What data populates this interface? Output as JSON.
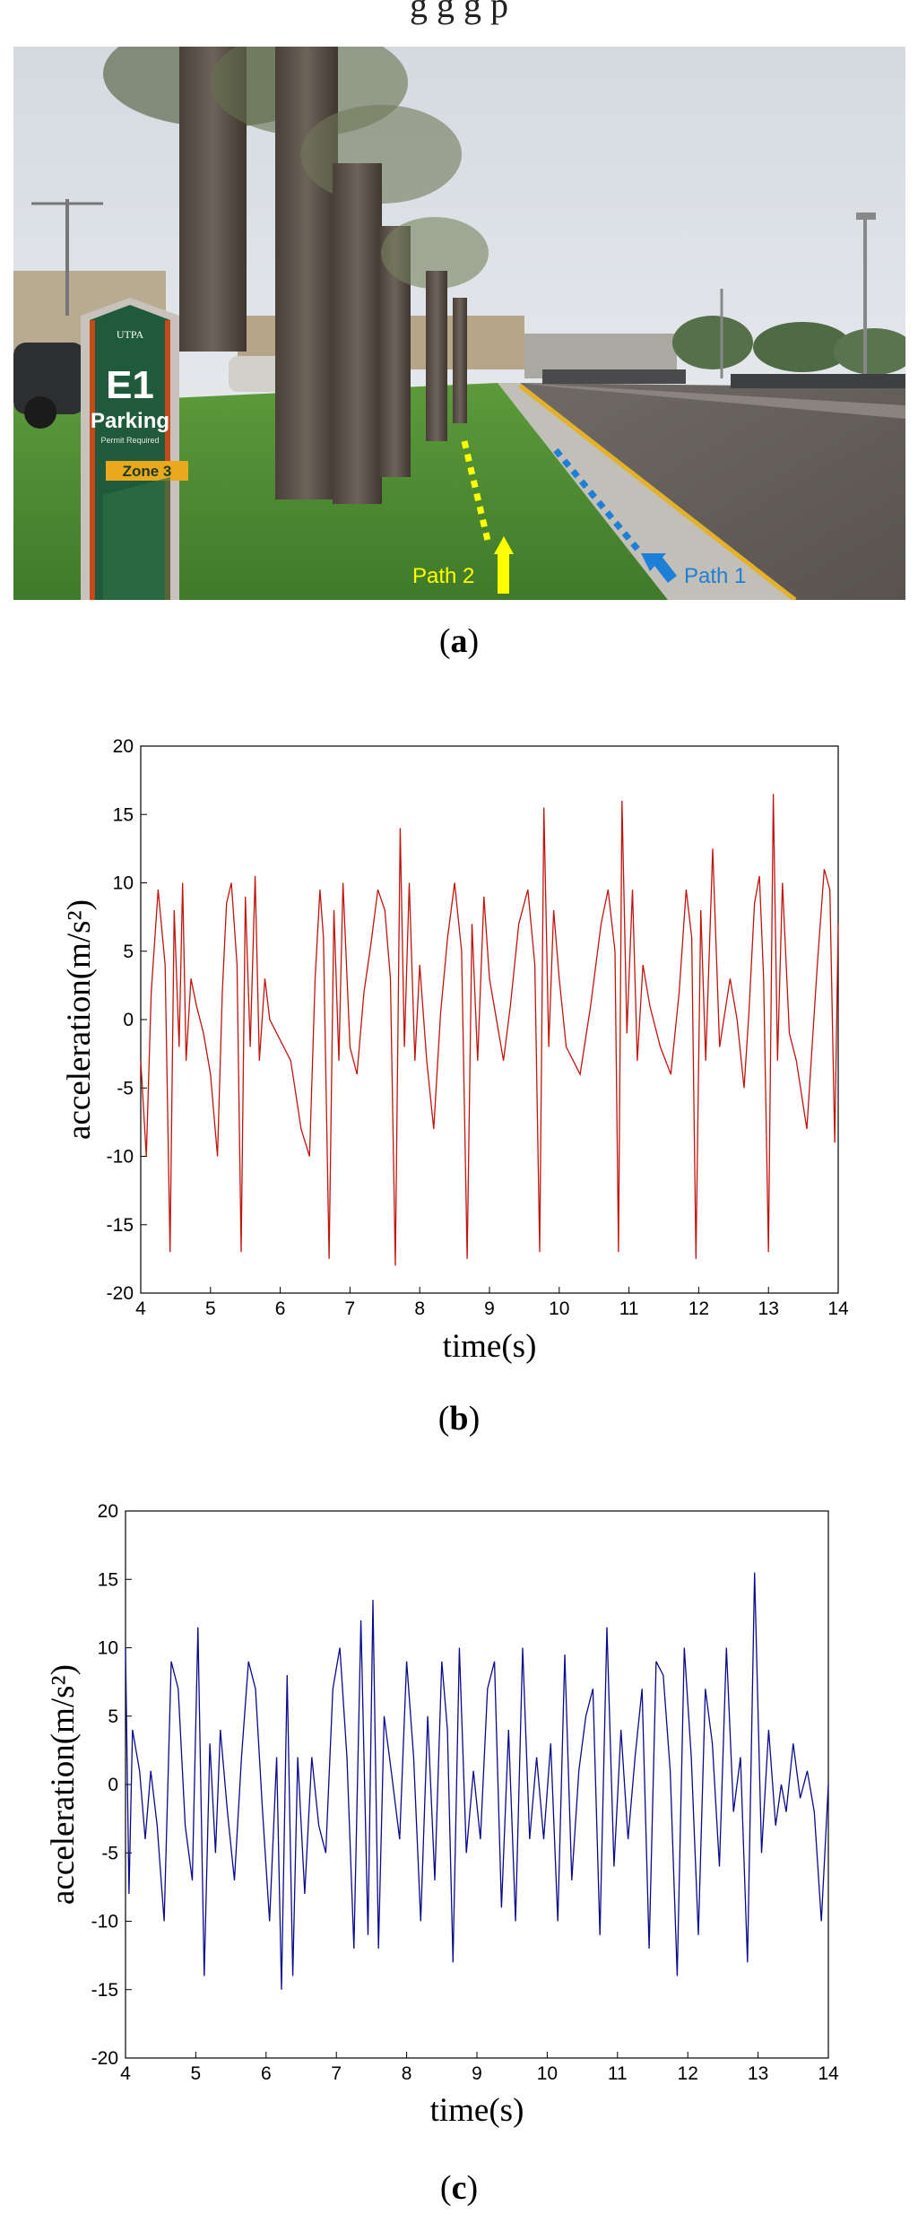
{
  "header_fragment": "g g g p",
  "photo": {
    "sign": {
      "logo": "UTPA",
      "lot": "E1",
      "title": "Parking",
      "subtitle": "Permit Required",
      "zone": "Zone 3"
    },
    "path2": {
      "label": "Path 2",
      "color": "#ffff00"
    },
    "path1": {
      "label": "Path 1",
      "color": "#1e7fd6"
    }
  },
  "captions": {
    "a": "a",
    "b": "b",
    "c": "c"
  },
  "chart_data": [
    {
      "type": "line",
      "panel": "b",
      "xlabel": "time(s)",
      "ylabel": "acceleration(m/s²)",
      "xlim": [
        4,
        14
      ],
      "ylim": [
        -20,
        20
      ],
      "xticks": [
        "4",
        "5",
        "6",
        "7",
        "8",
        "9",
        "10",
        "11",
        "12",
        "13",
        "14"
      ],
      "yticks": [
        "20",
        "15",
        "10",
        "5",
        "0",
        "-5",
        "-10",
        "-15",
        "-20"
      ],
      "grid": false,
      "color": "#c0140c",
      "series": [
        {
          "x": [
            4.0,
            4.08,
            4.15,
            4.25,
            4.35,
            4.42,
            4.48,
            4.55,
            4.6,
            4.65,
            4.72,
            4.8,
            4.9,
            5.0,
            5.1,
            5.17,
            5.23,
            5.3,
            5.38,
            5.44,
            5.5,
            5.57,
            5.64,
            5.7,
            5.78,
            5.85,
            5.95,
            6.05,
            6.15,
            6.3,
            6.42,
            6.5,
            6.57,
            6.62,
            6.7,
            6.77,
            6.84,
            6.9,
            7.0,
            7.1,
            7.2,
            7.3,
            7.4,
            7.5,
            7.58,
            7.65,
            7.72,
            7.78,
            7.85,
            7.93,
            8.0,
            8.1,
            8.2,
            8.3,
            8.4,
            8.5,
            8.6,
            8.68,
            8.75,
            8.83,
            8.92,
            9.0,
            9.1,
            9.2,
            9.3,
            9.42,
            9.55,
            9.65,
            9.72,
            9.78,
            9.85,
            9.92,
            10.0,
            10.1,
            10.2,
            10.3,
            10.45,
            10.6,
            10.7,
            10.8,
            10.85,
            10.9,
            10.97,
            11.05,
            11.12,
            11.2,
            11.3,
            11.45,
            11.6,
            11.72,
            11.82,
            11.9,
            11.96,
            12.03,
            12.1,
            12.2,
            12.3,
            12.45,
            12.55,
            12.65,
            12.72,
            12.8,
            12.87,
            12.93,
            13.0,
            13.07,
            13.13,
            13.2,
            13.3,
            13.4,
            13.55,
            13.7,
            13.8,
            13.88,
            13.95,
            14.0
          ],
          "y": [
            -3,
            -10,
            2,
            9.5,
            4,
            -17,
            8,
            -2,
            10,
            -3,
            3,
            1,
            -1,
            -4,
            -10,
            2,
            8.5,
            10,
            4,
            -17,
            9,
            -2,
            10.5,
            -3,
            3,
            0,
            -1,
            -2,
            -3,
            -8,
            -10,
            3,
            9.5,
            6,
            -17.5,
            8,
            -3,
            10,
            -2,
            -4,
            2,
            5.5,
            9.5,
            8,
            3,
            -18,
            14,
            -2,
            10,
            -3,
            4,
            -3,
            -8,
            0.5,
            6,
            10,
            5,
            -17.5,
            7,
            -3,
            9,
            3,
            0,
            -3,
            1,
            7,
            9.5,
            4,
            -17,
            15.5,
            -2,
            8,
            3,
            -2,
            -3,
            -4,
            1,
            7,
            9.5,
            5,
            -17,
            16,
            -1,
            9.5,
            -3,
            4,
            1,
            -2,
            -4,
            2,
            9.5,
            6,
            -17.5,
            8,
            -3,
            12.5,
            -2,
            3,
            0,
            -5,
            0.5,
            8.5,
            10.5,
            3,
            -17,
            16.5,
            -3,
            10,
            -1,
            -3,
            -8,
            4,
            11,
            9.5,
            -9,
            7
          ]
        }
      ]
    },
    {
      "type": "line",
      "panel": "c",
      "xlabel": "time(s)",
      "ylabel": "acceleration(m/s²)",
      "xlim": [
        4,
        14
      ],
      "ylim": [
        -20,
        20
      ],
      "xticks": [
        "4",
        "5",
        "6",
        "7",
        "8",
        "9",
        "10",
        "11",
        "12",
        "13",
        "14"
      ],
      "yticks": [
        "20",
        "15",
        "10",
        "5",
        "0",
        "-5",
        "-10",
        "-15",
        "-20"
      ],
      "grid": false,
      "color": "#0a0a8c",
      "series": [
        {
          "x": [
            4.0,
            4.05,
            4.1,
            4.2,
            4.28,
            4.36,
            4.45,
            4.55,
            4.65,
            4.75,
            4.85,
            4.95,
            5.03,
            5.12,
            5.2,
            5.28,
            5.35,
            5.45,
            5.55,
            5.65,
            5.75,
            5.85,
            5.95,
            6.05,
            6.15,
            6.22,
            6.3,
            6.38,
            6.45,
            6.55,
            6.65,
            6.75,
            6.85,
            6.95,
            7.05,
            7.15,
            7.25,
            7.35,
            7.45,
            7.52,
            7.6,
            7.68,
            7.78,
            7.9,
            8.0,
            8.1,
            8.2,
            8.3,
            8.4,
            8.5,
            8.58,
            8.66,
            8.75,
            8.85,
            8.95,
            9.05,
            9.15,
            9.25,
            9.35,
            9.45,
            9.55,
            9.65,
            9.75,
            9.85,
            9.95,
            10.05,
            10.15,
            10.25,
            10.35,
            10.45,
            10.55,
            10.65,
            10.75,
            10.85,
            10.95,
            11.05,
            11.15,
            11.25,
            11.35,
            11.45,
            11.55,
            11.65,
            11.75,
            11.85,
            11.95,
            12.05,
            12.15,
            12.25,
            12.35,
            12.45,
            12.55,
            12.65,
            12.75,
            12.85,
            12.95,
            13.05,
            13.15,
            13.25,
            13.33,
            13.4,
            13.5,
            13.6,
            13.7,
            13.8,
            13.9,
            14.0
          ],
          "y": [
            10,
            -8,
            4,
            1,
            -4,
            1,
            -3,
            -10,
            9,
            7,
            -3,
            -7,
            11.5,
            -14,
            3,
            -5,
            4,
            -2,
            -7,
            2,
            9,
            7,
            -2,
            -10,
            2,
            -15,
            8,
            -14,
            2,
            -8,
            2,
            -3,
            -5,
            7,
            10,
            2,
            -12,
            12,
            -11,
            13.5,
            -12,
            5,
            1,
            -4,
            9,
            2,
            -10,
            5,
            -7,
            9,
            4,
            -13,
            10,
            -5,
            1,
            -4,
            7,
            9,
            -9,
            4,
            -10,
            10,
            -4,
            2,
            -4,
            3,
            -10,
            9.5,
            -7,
            1,
            5,
            7,
            -11,
            11.5,
            -6,
            4,
            -4,
            2,
            7,
            -12,
            9,
            8,
            1,
            -14,
            10,
            2,
            -11,
            7,
            3,
            -6,
            10,
            -2,
            2,
            -13,
            15.5,
            -5,
            4,
            -3,
            0,
            -2,
            3,
            -1,
            1,
            -2,
            -10,
            0
          ]
        }
      ]
    }
  ]
}
